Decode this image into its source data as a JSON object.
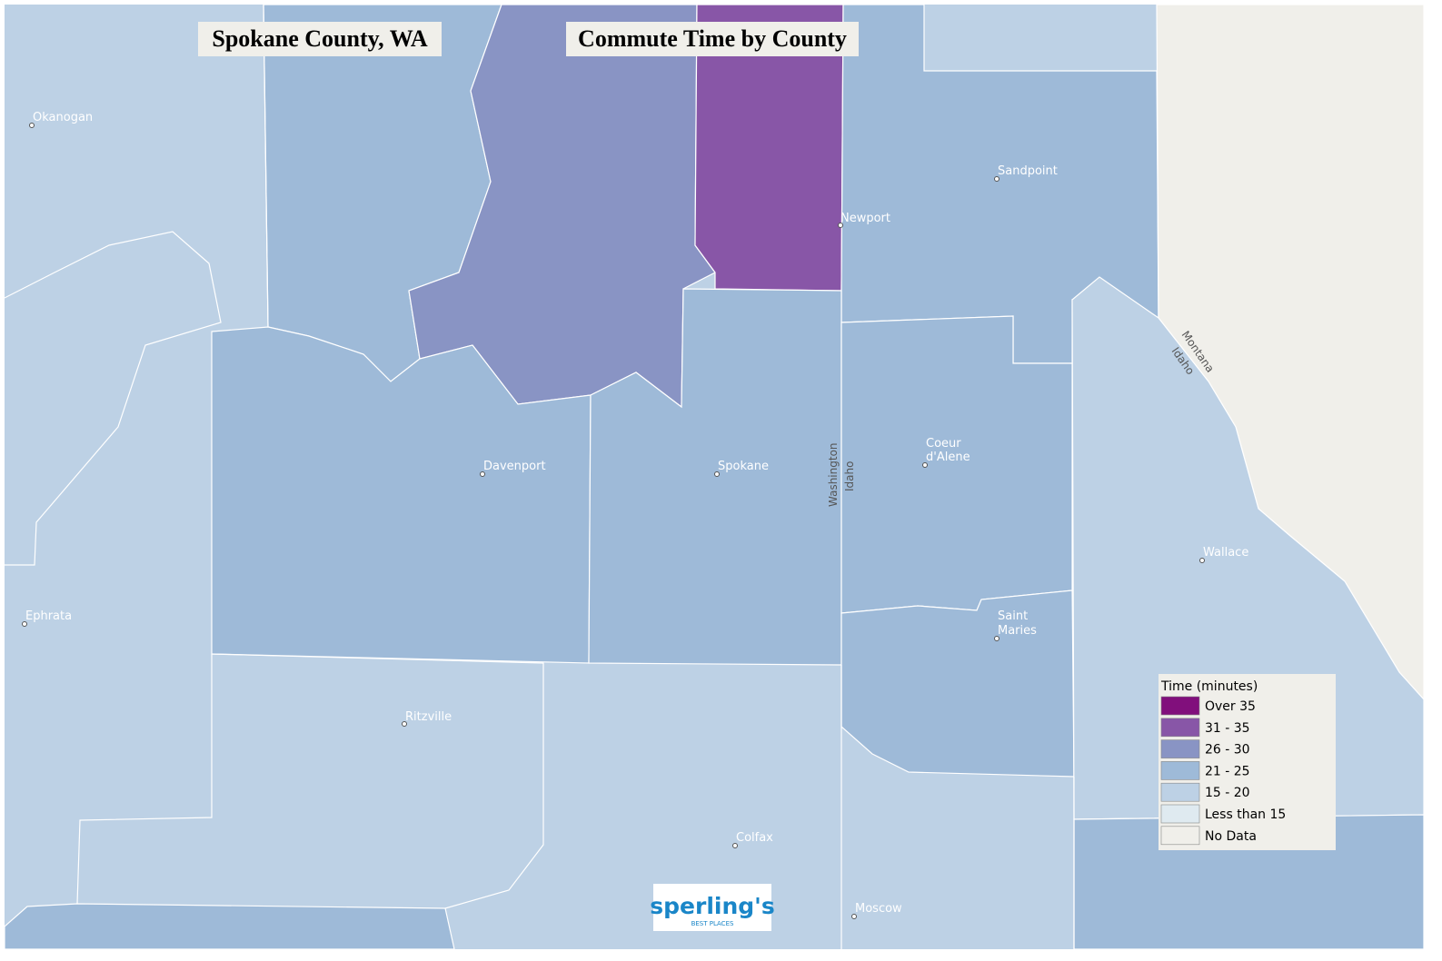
{
  "header": {
    "place": "Spokane County, WA",
    "title": "Commute Time by County"
  },
  "places": [
    {
      "lines": [
        "Okanogan"
      ]
    },
    {
      "lines": [
        "Sandpoint"
      ]
    },
    {
      "lines": [
        "Newport"
      ]
    },
    {
      "lines": [
        "Davenport"
      ]
    },
    {
      "lines": [
        "Spokane"
      ]
    },
    {
      "lines": [
        "Coeur",
        "d'Alene"
      ]
    },
    {
      "lines": [
        "Ephrata"
      ]
    },
    {
      "lines": [
        "Wallace"
      ]
    },
    {
      "lines": [
        "Saint",
        "Maries"
      ]
    },
    {
      "lines": [
        "Ritzville"
      ]
    },
    {
      "lines": [
        "Colfax"
      ]
    },
    {
      "lines": [
        "Moscow"
      ]
    }
  ],
  "state_labels": [
    "Washington",
    "Idaho",
    "Montana",
    "Idaho"
  ],
  "legend": {
    "title": "Time (minutes)",
    "entries": [
      {
        "label": "Over 35",
        "color": "#810f7c"
      },
      {
        "label": "31 - 35",
        "color": "#8856a7"
      },
      {
        "label": "26 - 30",
        "color": "#8994c4"
      },
      {
        "label": "21 - 25",
        "color": "#9ebad8"
      },
      {
        "label": "15 - 20",
        "color": "#bdd1e5"
      },
      {
        "label": "Less than 15",
        "color": "#dfeaf0"
      },
      {
        "label": "No Data",
        "color": "#f0efea"
      }
    ]
  },
  "logo": {
    "name": "sperling's",
    "tagline": "BEST PLACES"
  }
}
